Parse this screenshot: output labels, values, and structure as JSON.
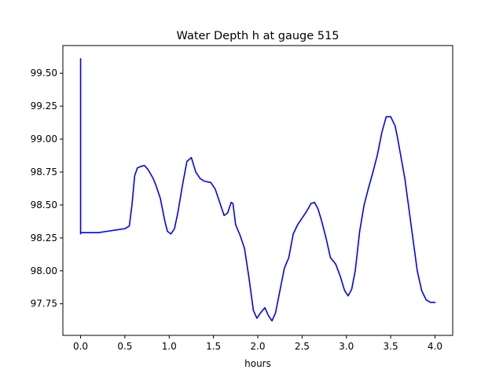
{
  "chart_data": {
    "type": "line",
    "title": "Water Depth h at gauge 515",
    "xlabel": "hours",
    "ylabel": "",
    "xlim": [
      -0.2,
      4.2
    ],
    "ylim": [
      97.51,
      99.71
    ],
    "x_ticks": [
      0.0,
      0.5,
      1.0,
      1.5,
      2.0,
      2.5,
      3.0,
      3.5,
      4.0
    ],
    "x_tick_labels": [
      "0.0",
      "0.5",
      "1.0",
      "1.5",
      "2.0",
      "2.5",
      "3.0",
      "3.5",
      "4.0"
    ],
    "y_ticks": [
      97.75,
      98.0,
      98.25,
      98.5,
      98.75,
      99.0,
      99.25,
      99.5
    ],
    "y_tick_labels": [
      "97.75",
      "98.00",
      "98.25",
      "98.50",
      "98.75",
      "99.00",
      "99.25",
      "99.50"
    ],
    "grid": false,
    "series": [
      {
        "name": "",
        "color": "#0000ff",
        "x": [
          0.0,
          0.0,
          0.001,
          0.1,
          0.2,
          0.3,
          0.4,
          0.5,
          0.55,
          0.58,
          0.61,
          0.64,
          0.67,
          0.72,
          0.76,
          0.82,
          0.85,
          0.9,
          0.95,
          0.98,
          1.02,
          1.06,
          1.1,
          1.15,
          1.2,
          1.25,
          1.3,
          1.35,
          1.4,
          1.47,
          1.52,
          1.57,
          1.62,
          1.66,
          1.7,
          1.72,
          1.75,
          1.8,
          1.85,
          1.9,
          1.95,
          1.99,
          2.03,
          2.08,
          2.12,
          2.16,
          2.2,
          2.25,
          2.3,
          2.35,
          2.4,
          2.45,
          2.5,
          2.55,
          2.6,
          2.64,
          2.68,
          2.72,
          2.77,
          2.82,
          2.88,
          2.93,
          2.98,
          3.02,
          3.06,
          3.1,
          3.15,
          3.2,
          3.25,
          3.3,
          3.35,
          3.4,
          3.45,
          3.5,
          3.55,
          3.58,
          3.62,
          3.66,
          3.7,
          3.75,
          3.8,
          3.85,
          3.9,
          3.95,
          4.0
        ],
        "y": [
          99.61,
          98.28,
          98.29,
          98.29,
          98.29,
          98.3,
          98.31,
          98.32,
          98.34,
          98.5,
          98.72,
          98.78,
          98.79,
          98.8,
          98.77,
          98.7,
          98.65,
          98.55,
          98.38,
          98.3,
          98.28,
          98.32,
          98.45,
          98.65,
          98.83,
          98.86,
          98.75,
          98.7,
          98.68,
          98.67,
          98.62,
          98.52,
          98.42,
          98.44,
          98.52,
          98.51,
          98.35,
          98.27,
          98.17,
          97.95,
          97.7,
          97.64,
          97.68,
          97.72,
          97.66,
          97.62,
          97.68,
          97.85,
          98.02,
          98.1,
          98.28,
          98.35,
          98.4,
          98.45,
          98.51,
          98.52,
          98.47,
          98.38,
          98.25,
          98.1,
          98.05,
          97.96,
          97.85,
          97.81,
          97.86,
          98.0,
          98.3,
          98.5,
          98.63,
          98.75,
          98.88,
          99.05,
          99.17,
          99.17,
          99.1,
          99.0,
          98.85,
          98.7,
          98.5,
          98.25,
          98.0,
          97.85,
          97.78,
          97.76,
          97.76
        ]
      }
    ]
  }
}
